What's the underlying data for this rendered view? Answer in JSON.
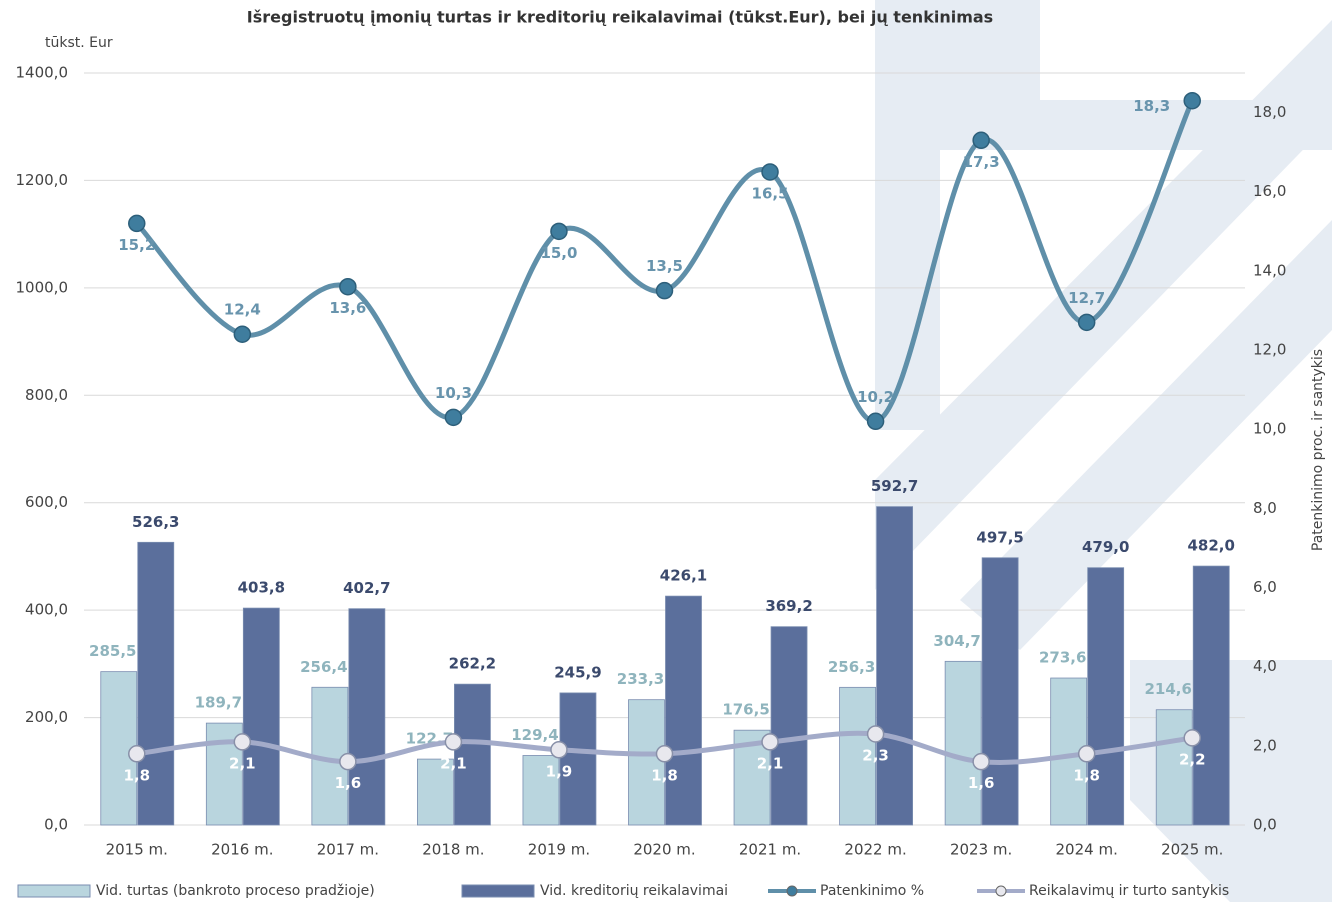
{
  "chart_data": {
    "type": "bar_line",
    "title": "Išregistruotų įmonių turtas ir kreditorių reikalavimai (tūkst.Eur), bei jų tenkinimas",
    "y_label": "tūkst. Eur",
    "y2_label": "Patenkinimo proc. ir santykis",
    "categories": [
      "2015 m.",
      "2016 m.",
      "2017 m.",
      "2018 m.",
      "2019 m.",
      "2020 m.",
      "2021 m.",
      "2022 m.",
      "2023 m.",
      "2024 m.",
      "2025 m."
    ],
    "series": [
      {
        "name": "Vid. turtas (bankroto proceso pradžioje)",
        "type": "bar",
        "color": "#b9d5de",
        "values": [
          285.5,
          189.7,
          256.4,
          122.7,
          129.4,
          233.3,
          176.5,
          256.3,
          304.7,
          273.6,
          214.6
        ],
        "value_labels": [
          "285,5",
          "189,7",
          "256,4",
          "122,7",
          "129,4",
          "233,3",
          "176,5",
          "256,3",
          "304,7",
          "273,6",
          "214,6"
        ]
      },
      {
        "name": "Vid. kreditorių reikalavimai",
        "type": "bar",
        "color": "#5b6f9c",
        "values": [
          526.3,
          403.8,
          402.7,
          262.2,
          245.9,
          426.1,
          369.2,
          592.7,
          497.5,
          479.0,
          482.0
        ],
        "value_labels": [
          "526,3",
          "403,8",
          "402,7",
          "262,2",
          "245,9",
          "426,1",
          "369,2",
          "592,7",
          "497,5",
          "479,0",
          "482,0"
        ]
      },
      {
        "name": "Patenkinimo %",
        "type": "line",
        "axis": "y2",
        "color": "#5f8fa9",
        "values": [
          15.2,
          12.4,
          13.6,
          10.3,
          15.0,
          13.5,
          16.5,
          10.2,
          17.3,
          12.7,
          18.3
        ],
        "value_labels": [
          "15,2",
          "12,4",
          "13,6",
          "10,3",
          "15,0",
          "13,5",
          "16,5",
          "10,2",
          "17,3",
          "12,7",
          "18,3"
        ]
      },
      {
        "name": "Reikalavimų ir turto santykis",
        "type": "line",
        "axis": "y2",
        "color": "#a3abc9",
        "values": [
          1.8,
          2.1,
          1.6,
          2.1,
          1.9,
          1.8,
          2.1,
          2.3,
          1.6,
          1.8,
          2.2
        ],
        "value_labels": [
          "1,8",
          "2,1",
          "1,6",
          "2,1",
          "1,9",
          "1,8",
          "2,1",
          "2,3",
          "1,6",
          "1,8",
          "2,2"
        ]
      }
    ],
    "ylim": [
      0,
      1400
    ],
    "yticks": [
      {
        "value": 0,
        "label": "0,0"
      },
      {
        "value": 200,
        "label": "200,0"
      },
      {
        "value": 400,
        "label": "400,0"
      },
      {
        "value": 600,
        "label": "600,0"
      },
      {
        "value": 800,
        "label": "800,0"
      },
      {
        "value": 1000,
        "label": "1000,0"
      },
      {
        "value": 1200,
        "label": "1200,0"
      },
      {
        "value": 1400,
        "label": "1400,0"
      }
    ],
    "y2lim": [
      0,
      19
    ],
    "y2ticks": [
      {
        "value": 0,
        "label": "0,0"
      },
      {
        "value": 2,
        "label": "2,0"
      },
      {
        "value": 4,
        "label": "4,0"
      },
      {
        "value": 6,
        "label": "6,0"
      },
      {
        "value": 8,
        "label": "8,0"
      },
      {
        "value": 10,
        "label": "10,0"
      },
      {
        "value": 12,
        "label": "12,0"
      },
      {
        "value": 14,
        "label": "14,0"
      },
      {
        "value": 16,
        "label": "16,0"
      },
      {
        "value": 18,
        "label": "18,0"
      }
    ],
    "grid": true,
    "legend": "bottom"
  }
}
